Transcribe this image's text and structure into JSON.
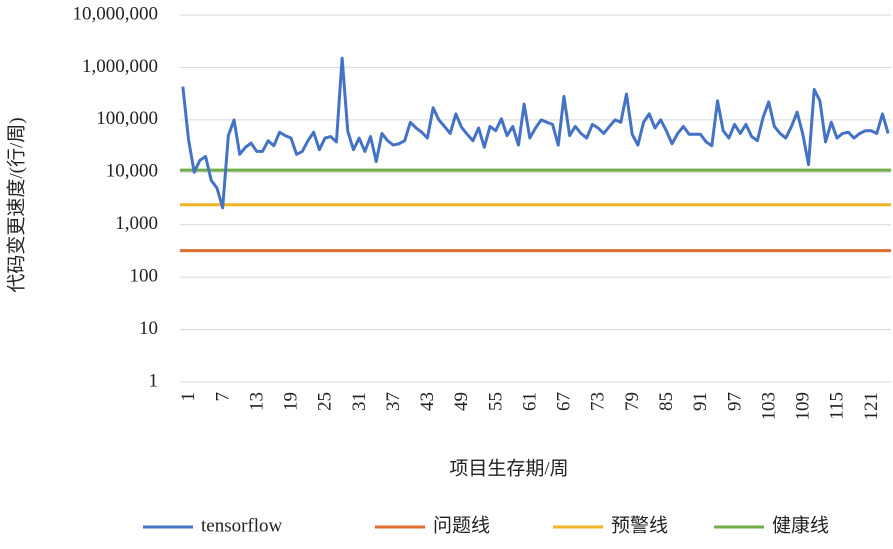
{
  "chart_data": {
    "type": "line",
    "y_label": "代码变更速度/(行/周)",
    "x_label": "项目生存期/周",
    "log_y": true,
    "grid": true,
    "legend": "bottom",
    "categories": [
      "1",
      null,
      null,
      null,
      null,
      null,
      "7",
      null,
      null,
      null,
      null,
      null,
      "13",
      null,
      null,
      null,
      null,
      null,
      "19",
      null,
      null,
      null,
      null,
      null,
      "25",
      null,
      null,
      null,
      null,
      null,
      "31",
      null,
      null,
      null,
      null,
      null,
      "37",
      null,
      null,
      null,
      null,
      null,
      "43",
      null,
      null,
      null,
      null,
      null,
      "49",
      null,
      null,
      null,
      null,
      null,
      "55",
      null,
      null,
      null,
      null,
      null,
      "61",
      null,
      null,
      null,
      null,
      null,
      "67",
      null,
      null,
      null,
      null,
      null,
      "73",
      null,
      null,
      null,
      null,
      null,
      "79",
      null,
      null,
      null,
      null,
      null,
      "85",
      null,
      null,
      null,
      null,
      null,
      "91",
      null,
      null,
      null,
      null,
      null,
      "97",
      null,
      null,
      null,
      null,
      null,
      "103",
      null,
      null,
      null,
      null,
      null,
      "109",
      null,
      null,
      null,
      null,
      null,
      "115",
      null,
      null,
      null,
      null,
      null,
      "121",
      null,
      null,
      null,
      null
    ],
    "series": [
      {
        "name": "tensorflow",
        "color": "#4472c4",
        "values": [
          430000,
          42000,
          10000,
          17000,
          20000,
          7000,
          5000,
          2100,
          50000,
          100000,
          22000,
          30000,
          36000,
          25000,
          25000,
          40000,
          32000,
          58000,
          50000,
          45000,
          22000,
          25000,
          40000,
          58000,
          27000,
          45000,
          48000,
          38000,
          1500000,
          60000,
          27000,
          45000,
          25000,
          48000,
          16000,
          55000,
          40000,
          33000,
          35000,
          40000,
          90000,
          70000,
          58000,
          45000,
          170000,
          100000,
          75000,
          55000,
          130000,
          72000,
          53000,
          40000,
          70000,
          30000,
          75000,
          62000,
          105000,
          50000,
          75000,
          33000,
          200000,
          45000,
          70000,
          100000,
          90000,
          82000,
          33000,
          280000,
          50000,
          75000,
          55000,
          45000,
          82000,
          70000,
          55000,
          75000,
          100000,
          90000,
          310000,
          53000,
          33000,
          90000,
          130000,
          70000,
          100000,
          62000,
          35000,
          55000,
          75000,
          53000,
          53000,
          53000,
          38000,
          32000,
          230000,
          62000,
          45000,
          82000,
          55000,
          82000,
          48000,
          40000,
          110000,
          220000,
          75000,
          55000,
          45000,
          75000,
          140000,
          53000,
          14000,
          380000,
          230000,
          38000,
          90000,
          45000,
          55000,
          58000,
          45000,
          55000,
          62000,
          62000,
          55000,
          130000,
          55000
        ]
      }
    ],
    "reference_lines": [
      {
        "name": "问题线",
        "color": "#e06c2f",
        "value": 320
      },
      {
        "name": "预警线",
        "color": "#f0b323",
        "value": 2400
      },
      {
        "name": "健康线",
        "color": "#70ad47",
        "value": 11000
      }
    ],
    "ylim": [
      1,
      10000000
    ],
    "yticks": [
      1,
      10,
      100,
      {
        "value": 1000,
        "label": "1,000"
      },
      {
        "value": 10000,
        "label": "10,000"
      },
      {
        "value": 100000,
        "label": "100,000"
      },
      {
        "value": 1000000,
        "label": "1,000,000"
      },
      {
        "value": 10000000,
        "label": "10,000,000"
      }
    ]
  }
}
